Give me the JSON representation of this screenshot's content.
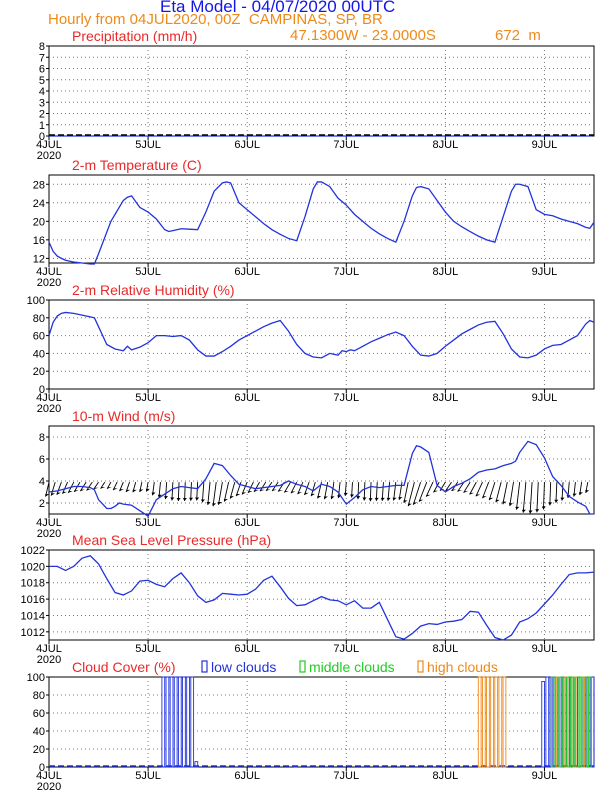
{
  "header": {
    "title": "Eta Model - 04/07/2020 00UTC",
    "subtitle": "Hourly from 04JUL2020, 00Z  CAMPINAS, SP, BR",
    "coordinates": "47.1300W - 23.0000S",
    "elevation": "672  m"
  },
  "colors": {
    "title": "#1515e6",
    "subtitle": "#ee8a1a",
    "panel_title": "#e82a2a",
    "line": "#2233dd",
    "arrow": "#000000",
    "grid": "#777777",
    "low": "#2233dd",
    "middle": "#22cc22",
    "high": "#ee8a1a"
  },
  "x_axis": {
    "ticks": [
      {
        "label": "4JUL",
        "hour": 0
      },
      {
        "label": "5JUL",
        "hour": 24
      },
      {
        "label": "6JUL",
        "hour": 48
      },
      {
        "label": "7JUL",
        "hour": 72
      },
      {
        "label": "8JUL",
        "hour": 96
      },
      {
        "label": "9JUL",
        "hour": 120
      }
    ],
    "year_label": "2020",
    "range": [
      0,
      132
    ]
  },
  "chart_data": [
    {
      "id": "precip",
      "type": "line",
      "title": "Precipitation (mm/h)",
      "ylim": [
        0,
        8
      ],
      "yticks": [
        0,
        1,
        2,
        3,
        4,
        5,
        6,
        7,
        8
      ],
      "series": [
        {
          "name": "precipitation",
          "x": [
            0,
            24,
            48,
            72,
            96,
            120,
            131,
            132
          ],
          "y": [
            0,
            0,
            0,
            0,
            0,
            0,
            0,
            0.1
          ]
        }
      ]
    },
    {
      "id": "temp",
      "type": "line",
      "title": "2-m Temperature (C)",
      "ylim": [
        11,
        30
      ],
      "yticks": [
        12,
        16,
        20,
        24,
        28
      ],
      "series": [
        {
          "name": "temperature",
          "x": [
            0,
            1,
            2,
            3,
            4,
            6,
            8,
            10,
            11,
            12,
            15,
            18,
            19,
            20,
            22,
            24,
            26,
            28,
            29,
            30,
            32,
            34,
            36,
            38,
            40,
            42,
            43,
            44,
            46,
            48,
            50,
            52,
            54,
            56,
            58,
            60,
            62,
            64,
            65,
            66,
            68,
            70,
            72,
            74,
            76,
            78,
            80,
            82,
            84,
            86,
            88,
            89,
            90,
            92,
            94,
            96,
            98,
            100,
            102,
            104,
            106,
            108,
            110,
            112,
            113,
            114,
            116,
            118,
            120,
            122,
            124,
            126,
            128,
            130,
            131,
            132
          ],
          "y": [
            15.5,
            13.5,
            12.5,
            12,
            11.6,
            11.2,
            11.0,
            10.8,
            10.8,
            13,
            20,
            24.5,
            25.2,
            25.5,
            23,
            22,
            20.5,
            18.2,
            17.8,
            18,
            18.4,
            18.3,
            18.2,
            22,
            26.5,
            28.3,
            28.5,
            28.3,
            24,
            22.5,
            21,
            19.5,
            18.2,
            17.2,
            16.3,
            15.8,
            21,
            27,
            28.5,
            28.5,
            27.5,
            25,
            23.5,
            21.5,
            20,
            18.5,
            17.3,
            16.3,
            15.5,
            20,
            25.5,
            27.3,
            27.5,
            27,
            24.5,
            22,
            20,
            18.8,
            17.8,
            16.8,
            16,
            15.5,
            21,
            26.5,
            28,
            28,
            27.5,
            22.5,
            21.5,
            21.2,
            20.5,
            20,
            19.5,
            18.7,
            18.5,
            19.8
          ]
        }
      ]
    },
    {
      "id": "rh",
      "type": "line",
      "title": "2-m Relative Humidity (%)",
      "ylim": [
        0,
        100
      ],
      "yticks": [
        0,
        20,
        40,
        60,
        80,
        100
      ],
      "series": [
        {
          "name": "relative_humidity",
          "x": [
            0,
            1,
            2,
            3,
            4,
            6,
            8,
            10,
            11,
            12,
            13,
            14,
            16,
            17,
            18,
            19,
            20,
            22,
            24,
            26,
            28,
            30,
            32,
            34,
            36,
            38,
            40,
            42,
            44,
            46,
            48,
            50,
            52,
            54,
            56,
            58,
            60,
            62,
            64,
            66,
            68,
            70,
            71,
            72,
            73,
            74,
            76,
            78,
            80,
            82,
            84,
            86,
            88,
            90,
            92,
            94,
            96,
            98,
            100,
            102,
            104,
            106,
            108,
            110,
            112,
            114,
            116,
            118,
            120,
            122,
            124,
            126,
            128,
            130,
            131,
            132
          ],
          "y": [
            60,
            75,
            82,
            85,
            86,
            85,
            83,
            81,
            80,
            70,
            60,
            50,
            45,
            44,
            43,
            48,
            44,
            47,
            52,
            60,
            60,
            59,
            60,
            55,
            44,
            37,
            37,
            42,
            48,
            55,
            60,
            65,
            70,
            74,
            77,
            65,
            50,
            40,
            36,
            35,
            40,
            38,
            43,
            42,
            44,
            43,
            48,
            53,
            57,
            61,
            64,
            60,
            48,
            38,
            37,
            40,
            48,
            55,
            62,
            67,
            72,
            75,
            76,
            62,
            45,
            36,
            35,
            38,
            45,
            49,
            50,
            55,
            60,
            73,
            77,
            75
          ]
        }
      ]
    },
    {
      "id": "wind",
      "type": "line",
      "title": "10-m Wind (m/s)",
      "ylim": [
        1,
        9
      ],
      "yticks": [
        2,
        4,
        6,
        8
      ],
      "barb_level": 3.9,
      "series": [
        {
          "name": "wind_speed",
          "x": [
            0,
            2,
            4,
            6,
            8,
            10,
            11,
            12,
            14,
            15,
            16,
            17,
            18,
            20,
            22,
            24,
            26,
            28,
            30,
            32,
            34,
            36,
            38,
            40,
            42,
            44,
            46,
            48,
            50,
            52,
            54,
            56,
            58,
            60,
            62,
            64,
            66,
            68,
            70,
            72,
            74,
            76,
            78,
            80,
            82,
            84,
            86,
            88,
            89,
            90,
            92,
            94,
            96,
            98,
            100,
            102,
            104,
            106,
            108,
            110,
            112,
            113,
            114,
            116,
            118,
            120,
            122,
            124,
            126,
            128,
            130,
            131,
            132
          ],
          "y": [
            3,
            3.1,
            3.3,
            3.5,
            3.5,
            3.4,
            3.2,
            2.3,
            1.5,
            1.5,
            1.7,
            2.0,
            1.9,
            1.8,
            1.3,
            0.8,
            2.3,
            2.8,
            3.3,
            3.5,
            3.4,
            3.3,
            4.2,
            5.6,
            5.4,
            4.5,
            3.7,
            3.5,
            3.3,
            3.4,
            3.5,
            3.6,
            4.0,
            3.7,
            3.5,
            3.1,
            3.7,
            3.5,
            3.0,
            1.9,
            2.5,
            3.2,
            3.5,
            3.4,
            3.5,
            3.6,
            3.6,
            6.5,
            7.2,
            7.1,
            6.6,
            3.6,
            3.0,
            3.5,
            3.8,
            4.2,
            4.8,
            5.0,
            5.1,
            5.4,
            5.6,
            5.8,
            6.6,
            7.6,
            7.3,
            6.1,
            4.4,
            3.6,
            2.6,
            2.1,
            1.7,
            1.0,
            1.0
          ]
        }
      ]
    },
    {
      "id": "pressure",
      "type": "line",
      "title": "Mean Sea Level Pressure (hPa)",
      "ylim": [
        1011,
        1022
      ],
      "yticks": [
        1012,
        1014,
        1016,
        1018,
        1020,
        1022
      ],
      "series": [
        {
          "name": "mslp",
          "x": [
            0,
            2,
            4,
            6,
            8,
            10,
            12,
            14,
            16,
            18,
            20,
            22,
            24,
            26,
            28,
            30,
            32,
            34,
            36,
            38,
            40,
            42,
            44,
            46,
            48,
            50,
            52,
            54,
            56,
            58,
            60,
            62,
            64,
            66,
            68,
            70,
            72,
            74,
            76,
            78,
            80,
            82,
            84,
            86,
            88,
            90,
            92,
            94,
            96,
            98,
            100,
            102,
            104,
            106,
            108,
            110,
            112,
            114,
            116,
            118,
            120,
            122,
            124,
            126,
            128,
            130,
            132
          ],
          "y": [
            1020,
            1020,
            1019.5,
            1020,
            1021,
            1021.3,
            1020.3,
            1018.5,
            1016.8,
            1016.5,
            1017,
            1018.2,
            1018.3,
            1017.8,
            1017.5,
            1018.5,
            1019.2,
            1018,
            1016.4,
            1015.6,
            1015.9,
            1016.7,
            1016.6,
            1016.5,
            1016.6,
            1017.2,
            1018.3,
            1018.8,
            1017.5,
            1016.1,
            1015.2,
            1015.3,
            1015.8,
            1016.3,
            1015.9,
            1015.8,
            1015.3,
            1015.8,
            1014.9,
            1014.9,
            1015.6,
            1013.5,
            1011.4,
            1011.1,
            1011.8,
            1012.7,
            1013.0,
            1012.9,
            1013.2,
            1013.3,
            1013.5,
            1014.5,
            1014.4,
            1012.8,
            1011.3,
            1011.0,
            1011.6,
            1013.2,
            1013.6,
            1014.3,
            1015.4,
            1016.5,
            1017.8,
            1019.0,
            1019.2,
            1019.2,
            1019.3
          ]
        }
      ]
    },
    {
      "id": "cloud",
      "type": "bar",
      "title": "Cloud Cover (%)",
      "legend": [
        "low clouds",
        "middle clouds",
        "high clouds"
      ],
      "ylim": [
        0,
        100
      ],
      "yticks": [
        0,
        20,
        40,
        60,
        80,
        100
      ],
      "series": [
        {
          "name": "low clouds",
          "x": [
            28,
            29,
            30,
            31,
            32,
            33,
            34,
            35,
            36,
            60,
            120,
            121,
            122,
            123,
            124,
            125,
            126,
            127,
            128,
            129,
            130,
            131,
            132
          ],
          "values": [
            100,
            100,
            100,
            100,
            100,
            100,
            100,
            100,
            6,
            1,
            95,
            100,
            100,
            100,
            100,
            100,
            100,
            100,
            100,
            100,
            100,
            100,
            100
          ]
        },
        {
          "name": "middle clouds",
          "x": [
            122,
            123,
            124,
            125,
            126,
            127,
            128,
            129,
            130,
            131
          ],
          "values": [
            100,
            100,
            100,
            100,
            100,
            100,
            100,
            100,
            100,
            100
          ]
        },
        {
          "name": "high clouds",
          "x": [
            104,
            105,
            106,
            107,
            108,
            109,
            110,
            123,
            125,
            127,
            129
          ],
          "values": [
            100,
            100,
            100,
            100,
            100,
            100,
            100,
            100,
            100,
            100,
            100
          ]
        }
      ]
    }
  ]
}
